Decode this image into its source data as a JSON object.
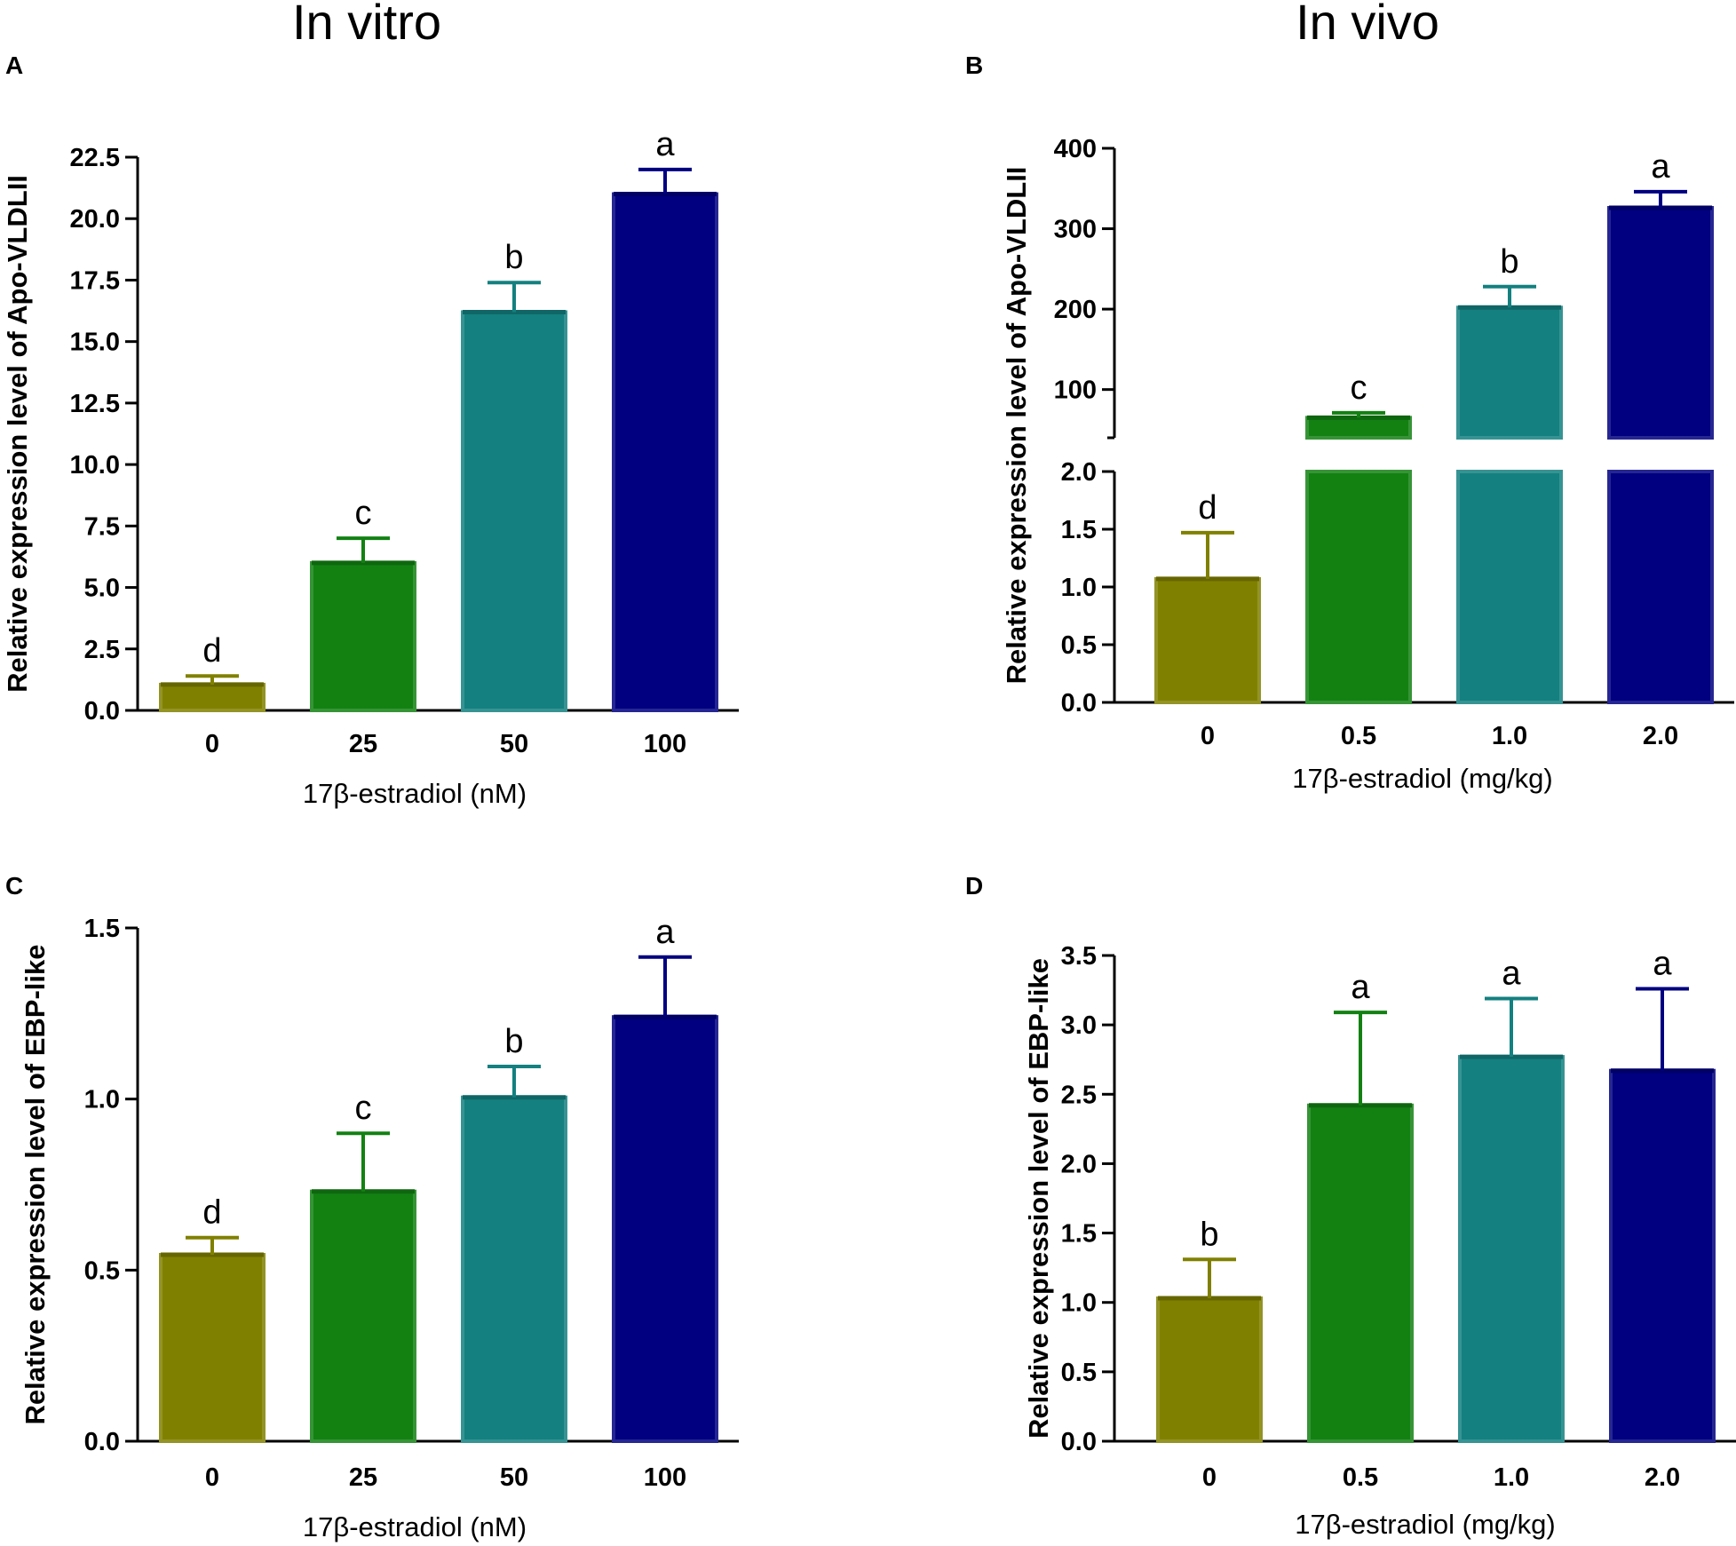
{
  "column_titles": [
    "In vitro",
    "In vivo"
  ],
  "chart_data": [
    {
      "panel": "A",
      "type": "bar",
      "categories": [
        "0",
        "25",
        "50",
        "100"
      ],
      "values": [
        1.05,
        6.0,
        16.2,
        21.0
      ],
      "errors": [
        0.35,
        1.0,
        1.2,
        1.0
      ],
      "significance": [
        "d",
        "c",
        "b",
        "a"
      ],
      "colors": [
        "#808000",
        "#128112",
        "#148080",
        "#000080"
      ],
      "ylabel": "Relative expression level of Apo-VLDLII",
      "xlabel": "17β-estradiol (nM)",
      "ylim": [
        0,
        22.5
      ],
      "yticks": [
        "0.0",
        "2.5",
        "5.0",
        "7.5",
        "10.0",
        "12.5",
        "15.0",
        "17.5",
        "20.0",
        "22.5"
      ]
    },
    {
      "panel": "B",
      "type": "bar",
      "broken_axis": true,
      "categories": [
        "0",
        "0.5",
        "1.0",
        "2.0"
      ],
      "values": [
        1.07,
        65,
        202,
        326
      ],
      "errors": [
        0.4,
        6,
        26,
        20
      ],
      "significance": [
        "d",
        "c",
        "b",
        "a"
      ],
      "colors": [
        "#808000",
        "#128112",
        "#148080",
        "#000080"
      ],
      "ylabel": "Relative expression level of Apo-VLDLII",
      "xlabel": "17β-estradiol (mg/kg)",
      "ylim_lower": [
        0,
        2.0
      ],
      "ylim_upper": [
        40,
        400
      ],
      "yticks_lower": [
        "0.0",
        "0.5",
        "1.0",
        "1.5",
        "2.0"
      ],
      "yticks_upper": [
        "100",
        "200",
        "300",
        "400"
      ]
    },
    {
      "panel": "C",
      "type": "bar",
      "categories": [
        "0",
        "25",
        "50",
        "100"
      ],
      "values": [
        0.545,
        0.73,
        1.005,
        1.24
      ],
      "errors": [
        0.05,
        0.17,
        0.09,
        0.175
      ],
      "significance": [
        "d",
        "c",
        "b",
        "a"
      ],
      "colors": [
        "#808000",
        "#128112",
        "#148080",
        "#000080"
      ],
      "ylabel": "Relative expression level of EBP-like",
      "xlabel": "17β-estradiol (nM)",
      "ylim": [
        0,
        1.5
      ],
      "yticks": [
        "0.0",
        "0.5",
        "1.0",
        "1.5"
      ]
    },
    {
      "panel": "D",
      "type": "bar",
      "categories": [
        "0",
        "0.5",
        "1.0",
        "2.0"
      ],
      "values": [
        1.03,
        2.42,
        2.77,
        2.67
      ],
      "errors": [
        0.28,
        0.67,
        0.42,
        0.59
      ],
      "significance": [
        "b",
        "a",
        "a",
        "a"
      ],
      "colors": [
        "#808000",
        "#128112",
        "#148080",
        "#000080"
      ],
      "ylabel": "Relative expression level of EBP-like",
      "xlabel": "17β-estradiol (mg/kg)",
      "ylim": [
        0,
        3.5
      ],
      "yticks": [
        "0.0",
        "0.5",
        "1.0",
        "1.5",
        "2.0",
        "2.5",
        "3.0",
        "3.5"
      ]
    }
  ]
}
